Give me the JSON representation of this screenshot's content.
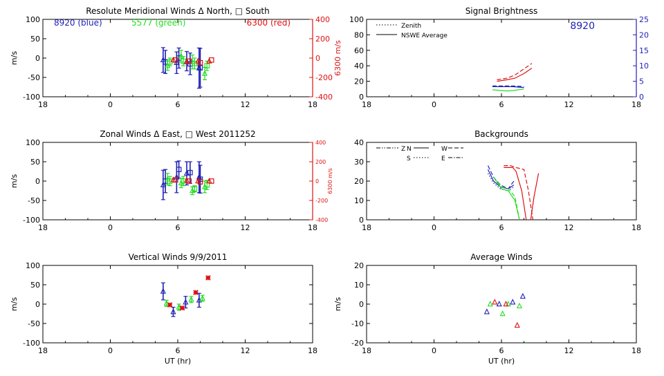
{
  "colors": {
    "axis": "#000000",
    "blue": "#1f1fb4",
    "green": "#22dd22",
    "red": "#dd1111"
  },
  "chart_data": [
    {
      "type": "scatter",
      "title": "Resolute Meridional Winds Δ North, □ South",
      "xlabel": "",
      "ylabel": "m/s",
      "right_ylabel": "6300 m/s",
      "xlim": [
        18,
        42
      ],
      "ylim": [
        -100,
        100
      ],
      "right_ylim": [
        -400,
        400
      ],
      "xticks": [
        18,
        24,
        30,
        36,
        42
      ],
      "xticklabels": [
        "18",
        "0",
        "6",
        "12",
        "18"
      ],
      "yticks": [
        -100,
        -50,
        0,
        50,
        100
      ],
      "yticklabels": [
        "-100",
        "-50",
        "0",
        "50",
        "100"
      ],
      "right_yticks": [
        -400,
        -200,
        0,
        200,
        400
      ],
      "right_yticklabels": [
        "-400",
        "-200",
        "0",
        "200",
        "400"
      ],
      "annotations": [
        {
          "text": "8920 (blue)",
          "color": "blue"
        },
        {
          "text": "5577 (green)",
          "color": "green"
        },
        {
          "text": "6300 (red)",
          "color": "red"
        }
      ],
      "series": [
        {
          "color": "blue",
          "marker": "triangle",
          "x": [
            28.7,
            29.9,
            30.8,
            31.9
          ],
          "y": [
            -5,
            -12,
            -8,
            -26
          ],
          "err": [
            32,
            28,
            25,
            52
          ]
        },
        {
          "color": "blue",
          "marker": "square",
          "x": [
            28.9,
            30.1,
            31.1,
            32.0
          ],
          "y": [
            -10,
            0,
            -15,
            -25
          ],
          "err": [
            30,
            26,
            28,
            50
          ]
        },
        {
          "color": "green",
          "marker": "triangle",
          "x": [
            29.1,
            30.3,
            31.3,
            32.4
          ],
          "y": [
            -20,
            5,
            -10,
            -40
          ],
          "err": [
            12,
            15,
            18,
            16
          ]
        },
        {
          "color": "green",
          "marker": "square",
          "x": [
            29.3,
            30.5,
            31.5,
            32.6
          ],
          "y": [
            -10,
            -8,
            -14,
            -20
          ],
          "err": [
            10,
            12,
            14,
            12
          ]
        },
        {
          "color": "red",
          "marker": "triangle",
          "x": [
            29.6,
            30.8,
            31.8,
            32.8
          ],
          "y": [
            -5,
            -10,
            -8,
            -8
          ],
          "err": [
            2,
            2,
            2,
            2
          ]
        },
        {
          "color": "red",
          "marker": "square",
          "x": [
            29.8,
            31.0,
            32.0,
            33.0
          ],
          "y": [
            -5,
            -8,
            -12,
            -5
          ],
          "err": [
            2,
            2,
            2,
            2
          ]
        }
      ]
    },
    {
      "type": "line",
      "title": "Signal Brightness",
      "xlabel": "",
      "ylabel": "",
      "xlim": [
        18,
        42
      ],
      "ylim": [
        0,
        100
      ],
      "right_ylim": [
        0,
        25
      ],
      "xticks": [
        18,
        24,
        30,
        36,
        42
      ],
      "xticklabels": [
        "18",
        "0",
        "6",
        "12",
        "18"
      ],
      "yticks": [
        0,
        20,
        40,
        60,
        80,
        100
      ],
      "yticklabels": [
        "0",
        "20",
        "40",
        "60",
        "80",
        "100"
      ],
      "right_yticks": [
        0,
        5,
        10,
        15,
        20,
        25
      ],
      "right_yticklabels": [
        "0",
        "5",
        "10",
        "15",
        "20",
        "25"
      ],
      "legend": [
        {
          "label": "Zenith",
          "style": "dotted"
        },
        {
          "label": "NSWE Average",
          "style": "solid"
        }
      ],
      "annotations": [
        {
          "text": "8920",
          "color": "blue"
        }
      ],
      "series": [
        {
          "color": "blue",
          "style": "solid",
          "x": [
            29.2,
            30,
            31,
            32
          ],
          "y": [
            13,
            13,
            13,
            12
          ]
        },
        {
          "color": "blue",
          "style": "dashed",
          "x": [
            29.2,
            30,
            31,
            32
          ],
          "y": [
            14,
            14,
            14,
            13
          ]
        },
        {
          "color": "green",
          "style": "solid",
          "x": [
            29.2,
            30,
            30.5,
            31,
            32
          ],
          "y": [
            9,
            8,
            7.5,
            8,
            10
          ]
        },
        {
          "color": "red",
          "style": "solid",
          "x": [
            29.6,
            30.5,
            31.2,
            32,
            32.7
          ],
          "y": [
            20,
            22,
            24,
            30,
            37
          ]
        },
        {
          "color": "red",
          "style": "dashed",
          "x": [
            29.6,
            30.5,
            31.2,
            32,
            32.7
          ],
          "y": [
            22,
            24,
            28,
            36,
            43
          ]
        }
      ]
    },
    {
      "type": "scatter",
      "title": "Zonal Winds Δ East, □ West 2011252",
      "xlabel": "",
      "ylabel": "m/s",
      "right_ylabel": "6300 m/s",
      "xlim": [
        18,
        42
      ],
      "ylim": [
        -100,
        100
      ],
      "right_ylim": [
        -400,
        400
      ],
      "xticks": [
        18,
        24,
        30,
        36,
        42
      ],
      "xticklabels": [
        "18",
        "0",
        "6",
        "12",
        "18"
      ],
      "yticks": [
        -100,
        -50,
        0,
        50,
        100
      ],
      "yticklabels": [
        "-100",
        "-50",
        "0",
        "50",
        "100"
      ],
      "right_yticks": [
        -400,
        -200,
        0,
        200,
        400
      ],
      "right_yticklabels": [
        "-400",
        "-200",
        "0",
        "200",
        "400"
      ],
      "series": [
        {
          "color": "blue",
          "marker": "triangle",
          "x": [
            28.7,
            29.9,
            30.8,
            31.9
          ],
          "y": [
            -10,
            10,
            20,
            10
          ],
          "err": [
            38,
            40,
            30,
            40
          ]
        },
        {
          "color": "blue",
          "marker": "square",
          "x": [
            28.9,
            30.1,
            31.1,
            32.0
          ],
          "y": [
            0,
            30,
            22,
            5
          ],
          "err": [
            30,
            22,
            28,
            36
          ]
        },
        {
          "color": "green",
          "marker": "triangle",
          "x": [
            29.1,
            30.3,
            31.3,
            32.4
          ],
          "y": [
            5,
            -5,
            -25,
            -15
          ],
          "err": [
            15,
            12,
            10,
            15
          ]
        },
        {
          "color": "green",
          "marker": "square",
          "x": [
            29.3,
            30.5,
            31.5,
            32.6
          ],
          "y": [
            0,
            0,
            -20,
            -10
          ],
          "err": [
            12,
            12,
            8,
            12
          ]
        },
        {
          "color": "red",
          "marker": "triangle",
          "x": [
            29.6,
            30.8,
            31.8,
            32.8
          ],
          "y": [
            3,
            2,
            0,
            0
          ],
          "err": [
            2,
            2,
            2,
            2
          ]
        },
        {
          "color": "red",
          "marker": "square",
          "x": [
            29.8,
            31.0,
            32.0,
            33.0
          ],
          "y": [
            3,
            0,
            -2,
            0
          ],
          "err": [
            2,
            2,
            2,
            2
          ]
        }
      ]
    },
    {
      "type": "line",
      "title": "Backgrounds",
      "xlabel": "",
      "ylabel": "",
      "xlim": [
        18,
        42
      ],
      "ylim": [
        0,
        40
      ],
      "xticks": [
        18,
        24,
        30,
        36,
        42
      ],
      "xticklabels": [
        "18",
        "0",
        "6",
        "12",
        "18"
      ],
      "yticks": [
        0,
        10,
        20,
        30,
        40
      ],
      "yticklabels": [
        "0",
        "10",
        "20",
        "30",
        "40"
      ],
      "legend": [
        {
          "label": "Z",
          "style": "dashdotdot"
        },
        {
          "label": "N",
          "style": "solid"
        },
        {
          "label": "W",
          "style": "dashed"
        },
        {
          "label": "S",
          "style": "dotted"
        },
        {
          "label": "E",
          "style": "dashdot"
        }
      ],
      "series": [
        {
          "color": "blue",
          "style": "solid",
          "x": [
            28.8,
            29.3,
            29.9,
            30.6,
            31.1
          ],
          "y": [
            26,
            20,
            17,
            16,
            18
          ]
        },
        {
          "color": "blue",
          "style": "dashed",
          "x": [
            28.8,
            29.3,
            29.9,
            30.6,
            31.1
          ],
          "y": [
            28,
            22,
            18,
            16,
            20
          ]
        },
        {
          "color": "blue",
          "style": "dotted",
          "x": [
            28.8,
            29.3,
            29.9,
            30.6,
            31.1
          ],
          "y": [
            24,
            19,
            16,
            15,
            17
          ]
        },
        {
          "color": "green",
          "style": "solid",
          "x": [
            29.3,
            30.0,
            30.6,
            31.2,
            31.6
          ],
          "y": [
            22,
            16,
            15,
            10,
            0
          ]
        },
        {
          "color": "green",
          "style": "dashed",
          "x": [
            29.3,
            30.0,
            30.6,
            31.2,
            31.6
          ],
          "y": [
            22,
            17,
            16,
            12,
            0
          ]
        },
        {
          "color": "red",
          "style": "solid",
          "x": [
            30.2,
            30.8,
            31.0,
            31.3,
            31.8,
            32.2
          ],
          "y": [
            27,
            27,
            27,
            25,
            15,
            0
          ]
        },
        {
          "color": "red",
          "style": "dashed",
          "x": [
            30.2,
            30.8,
            31.3,
            32.0,
            32.4,
            32.8
          ],
          "y": [
            28,
            28,
            27,
            26,
            15,
            0
          ]
        },
        {
          "color": "red",
          "style": "solid",
          "x": [
            32.6,
            32.9,
            33.3
          ],
          "y": [
            0,
            12,
            24
          ]
        }
      ]
    },
    {
      "type": "scatter",
      "title": "Vertical Winds 9/9/2011",
      "xlabel": "UT (hr)",
      "ylabel": "m/s",
      "xlim": [
        18,
        42
      ],
      "ylim": [
        -100,
        100
      ],
      "xticks": [
        18,
        24,
        30,
        36,
        42
      ],
      "xticklabels": [
        "18",
        "0",
        "6",
        "12",
        "18"
      ],
      "yticks": [
        -100,
        -50,
        0,
        50,
        100
      ],
      "yticklabels": [
        "-100",
        "-50",
        "0",
        "50",
        "100"
      ],
      "series": [
        {
          "color": "blue",
          "marker": "triangle",
          "x": [
            28.7,
            29.6,
            30.7,
            31.9
          ],
          "y": [
            33,
            -20,
            5,
            10
          ],
          "err": [
            22,
            12,
            15,
            18
          ]
        },
        {
          "color": "green",
          "marker": "triangle",
          "x": [
            29.0,
            30.1,
            31.2,
            32.2
          ],
          "y": [
            2,
            -8,
            12,
            15
          ],
          "err": [
            8,
            8,
            8,
            8
          ]
        },
        {
          "color": "red",
          "marker": "star",
          "x": [
            29.3,
            30.4,
            31.6,
            32.7
          ],
          "y": [
            -2,
            -10,
            30,
            68
          ],
          "err": [
            2,
            2,
            2,
            2
          ]
        }
      ]
    },
    {
      "type": "scatter",
      "title": "Average Winds",
      "xlabel": "UT (hr)",
      "ylabel": "m/s",
      "xlim": [
        18,
        42
      ],
      "ylim": [
        -20,
        20
      ],
      "xticks": [
        18,
        24,
        30,
        36,
        42
      ],
      "xticklabels": [
        "18",
        "0",
        "6",
        "12",
        "18"
      ],
      "yticks": [
        -20,
        -10,
        0,
        10,
        20
      ],
      "yticklabels": [
        "-20",
        "-10",
        "0",
        "10",
        "20"
      ],
      "series": [
        {
          "color": "blue",
          "marker": "triangle",
          "x": [
            28.7,
            29.8,
            31.0,
            31.9
          ],
          "y": [
            -4,
            0,
            1,
            4
          ]
        },
        {
          "color": "green",
          "marker": "triangle",
          "x": [
            29.0,
            30.1,
            30.6,
            31.6,
            32.2
          ],
          "y": [
            0,
            -5,
            0,
            -1,
            -21
          ]
        },
        {
          "color": "red",
          "marker": "triangle",
          "x": [
            29.4,
            30.4,
            31.4
          ],
          "y": [
            1,
            0,
            -11
          ]
        }
      ]
    }
  ]
}
